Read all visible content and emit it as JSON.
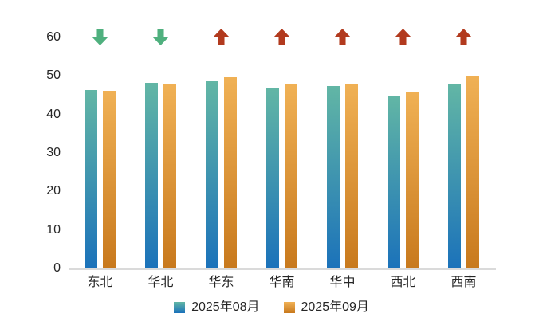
{
  "chart_data": {
    "type": "bar",
    "title": "",
    "categories": [
      "东北",
      "华北",
      "华东",
      "华南",
      "华中",
      "西北",
      "西南"
    ],
    "series": [
      {
        "name": "2025年08月",
        "values": [
          46.4,
          48.3,
          48.6,
          46.7,
          47.4,
          44.8,
          47.8
        ]
      },
      {
        "name": "2025年09月",
        "values": [
          46.1,
          47.7,
          49.6,
          47.7,
          48.0,
          45.9,
          50.0
        ]
      }
    ],
    "trend_arrows": [
      "down",
      "down",
      "up",
      "up",
      "up",
      "up",
      "up"
    ],
    "xlabel": "",
    "ylabel": "",
    "ylim": [
      0,
      60
    ],
    "yticks": [
      0,
      10,
      20,
      30,
      40,
      50,
      60
    ],
    "grid": false,
    "legend_position": "bottom"
  },
  "colors": {
    "bar_aug_top": "#62b6a5",
    "bar_aug_bottom": "#1b72ba",
    "bar_sep_top": "#f0b155",
    "bar_sep_bottom": "#c8791d",
    "arrow_up": "#b23a1e",
    "arrow_down": "#4fb07e",
    "axis_line": "#dadada",
    "text": "#262626",
    "background": "#ffffff"
  }
}
